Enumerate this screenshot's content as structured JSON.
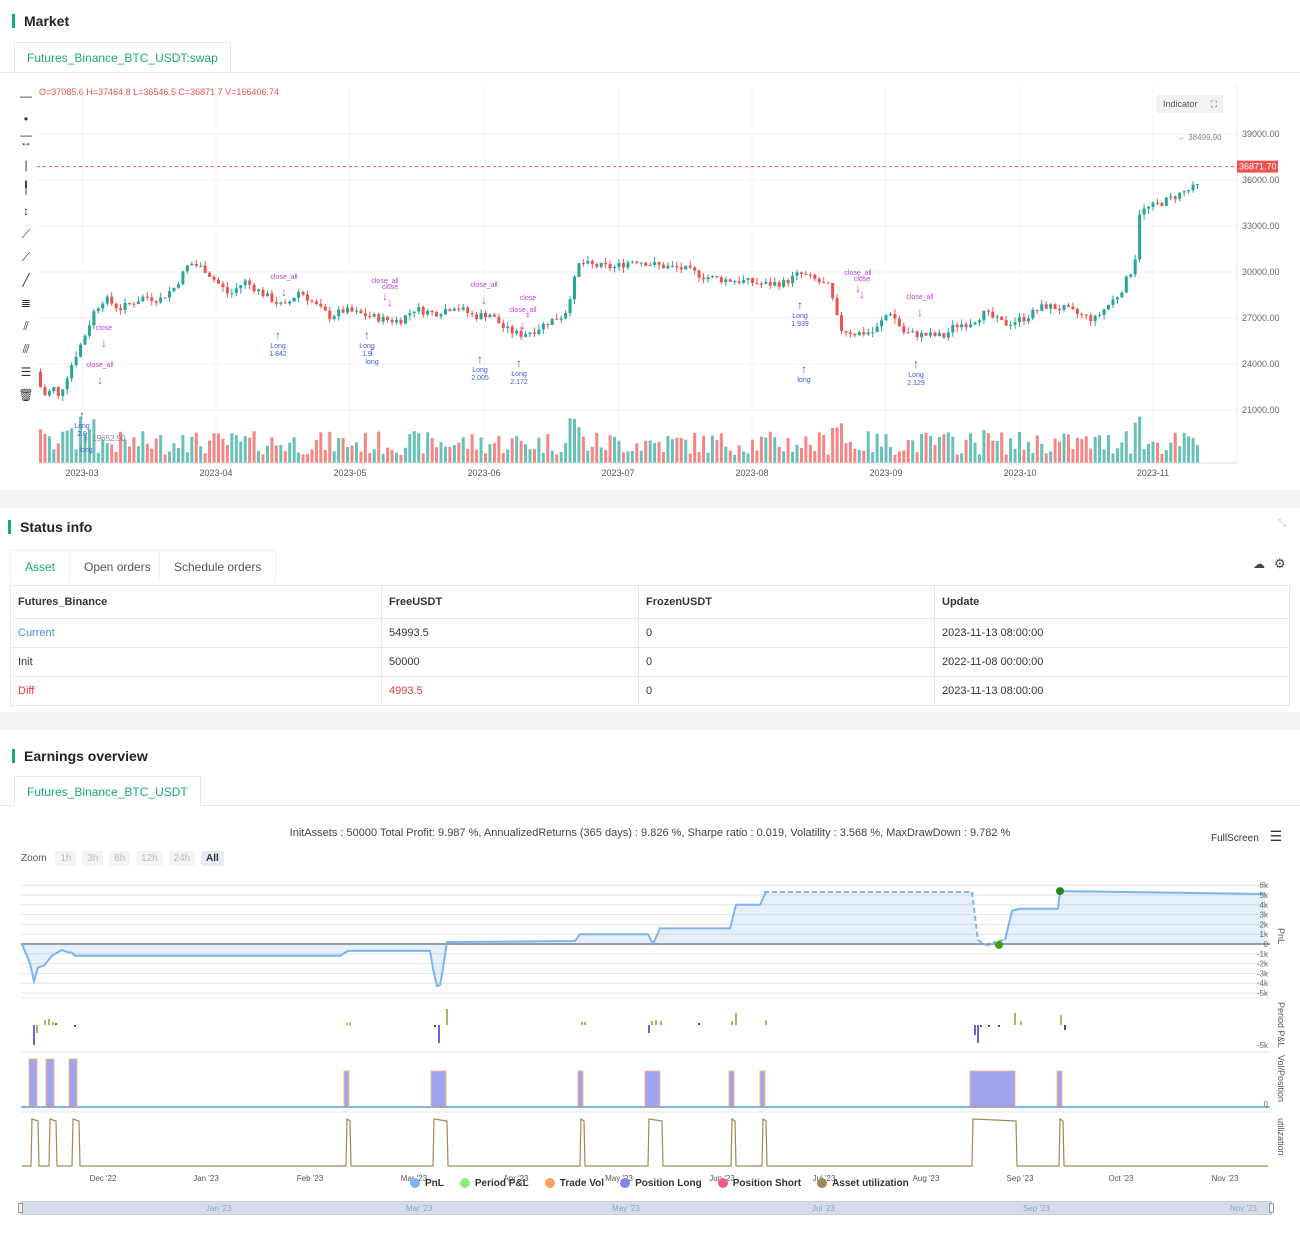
{
  "market": {
    "title": "Market",
    "tab": "Futures_Binance_BTC_USDT:swap",
    "ohlcv": "O=37085.6 H=37464.8 L=36546.5 C=36871.7 V=166406.74",
    "indicator_label": "Indicator",
    "current_price": "36871.70",
    "high_marker": "38499.90",
    "low_marker": "19652.90",
    "y_ticks": [
      "39000.00",
      "36000.00",
      "33000.00",
      "30000.00",
      "27000.00",
      "24000.00",
      "21000.00"
    ],
    "x_ticks": [
      "2023-03",
      "2023-04",
      "2023-05",
      "2023-06",
      "2023-07",
      "2023-08",
      "2023-09",
      "2023-10",
      "2023-11"
    ],
    "up_color": "#26a69a",
    "down_color": "#ef5350",
    "signals": [
      {
        "text": "close",
        "kind": "close"
      },
      {
        "text": "close_all",
        "kind": "close"
      },
      {
        "text": "Long 2.0",
        "kind": "long"
      },
      {
        "text": "long",
        "kind": "long"
      },
      {
        "text": "close_all",
        "kind": "close"
      },
      {
        "text": "Long 1.842",
        "kind": "long"
      },
      {
        "text": "close_all",
        "kind": "close"
      },
      {
        "text": "close",
        "kind": "close"
      },
      {
        "text": "Long 1.9",
        "kind": "long"
      },
      {
        "text": "long",
        "kind": "long"
      },
      {
        "text": "close_all",
        "kind": "close"
      },
      {
        "text": "Long 2.005",
        "kind": "long"
      },
      {
        "text": "close",
        "kind": "close"
      },
      {
        "text": "close_all",
        "kind": "close"
      },
      {
        "text": "Long 2.172",
        "kind": "long"
      },
      {
        "text": "Long 1.939",
        "kind": "long"
      },
      {
        "text": "long",
        "kind": "long"
      },
      {
        "text": "close_all",
        "kind": "close"
      },
      {
        "text": "close",
        "kind": "close"
      },
      {
        "text": "close_all",
        "kind": "close"
      },
      {
        "text": "Long 2.129",
        "kind": "long"
      }
    ]
  },
  "status": {
    "title": "Status info",
    "tabs": [
      "Asset",
      "Open orders",
      "Schedule orders"
    ],
    "columns": [
      "Futures_Binance",
      "FreeUSDT",
      "FrozenUSDT",
      "Update"
    ],
    "rows": [
      {
        "name": "Current",
        "free": "54993.5",
        "frozen": "0",
        "update": "2023-11-13 08:00:00"
      },
      {
        "name": "Init",
        "free": "50000",
        "frozen": "0",
        "update": "2022-11-08 00:00:00"
      },
      {
        "name": "Diff",
        "free": "4993.5",
        "frozen": "0",
        "update": "2023-11-13 08:00:00"
      }
    ]
  },
  "earnings": {
    "title": "Earnings overview",
    "tab": "Futures_Binance_BTC_USDT",
    "summary": "InitAssets : 50000 Total Profit: 9.987 %, AnnualizedReturns (365 days) : 9.826 %, Sharpe ratio : 0.019, Volatility : 3.568 %, MaxDrawDown : 9.782 %",
    "fullscreen": "FullScreen",
    "zoom_label": "Zoom",
    "zoom_options": [
      "1h",
      "3h",
      "8h",
      "12h",
      "24h",
      "All"
    ],
    "pnl_ticks": [
      "6k",
      "5k",
      "4k",
      "3k",
      "2k",
      "1k",
      "0",
      "-1k",
      "-2k",
      "-3k",
      "-4k",
      "-5k"
    ],
    "period_tick": "-5k",
    "vol_tick": "0",
    "axis_labels": [
      "PnL",
      "Period P&L",
      "Vol/Position",
      "utilization"
    ],
    "x_ticks": [
      "Dec '22",
      "Jan '23",
      "Feb '23",
      "Mar '23",
      "Apr '23",
      "May '23",
      "Jun '23",
      "Jul '23",
      "Aug '23",
      "Sep '23",
      "Oct '23",
      "Nov '23"
    ],
    "nav_ticks": [
      "Jan '23",
      "Mar '23",
      "May '23",
      "Jul '23",
      "Sep '23",
      "Nov '23"
    ],
    "legend": [
      {
        "label": "PnL",
        "color": "#7cb5ec"
      },
      {
        "label": "Period P&L",
        "color": "#90ed7d"
      },
      {
        "label": "Trade Vol",
        "color": "#f7a35c"
      },
      {
        "label": "Position Long",
        "color": "#8085e9"
      },
      {
        "label": "Position Short",
        "color": "#f15c80"
      },
      {
        "label": "Asset utilization",
        "color": "#a08a50"
      }
    ]
  }
}
